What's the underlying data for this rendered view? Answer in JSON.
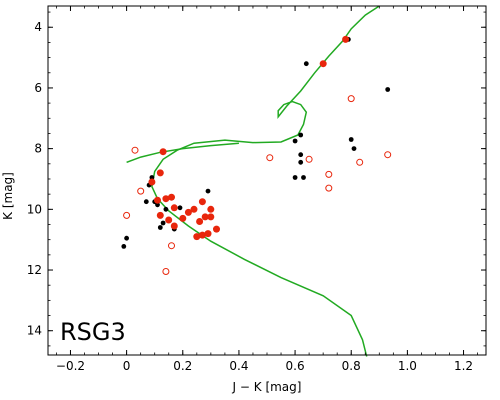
{
  "chart_data": {
    "type": "scatter",
    "xlabel": "J − K [mag]",
    "ylabel": "K [mag]",
    "annotation": "RSG3",
    "xlim": [
      -0.28,
      1.28
    ],
    "ylim": [
      14.8,
      3.3
    ],
    "y_inverted": true,
    "xticks": [
      -0.2,
      0.0,
      0.2,
      0.4,
      0.6,
      0.8,
      1.0,
      1.2
    ],
    "xtick_labels": [
      "−0.2",
      "0",
      "0.2",
      "0.4",
      "0.6",
      "0.8",
      "1.0",
      "1.2"
    ],
    "yticks": [
      4,
      6,
      8,
      10,
      12,
      14
    ],
    "ytick_labels": [
      "4",
      "6",
      "8",
      "10",
      "12",
      "14"
    ],
    "colors": {
      "black": "#000000",
      "red": "#e8260c",
      "green": "#22aa22"
    },
    "series": [
      {
        "style": "black-filled",
        "points": [
          [
            -0.01,
            11.22
          ],
          [
            0.0,
            10.95
          ],
          [
            0.07,
            9.75
          ],
          [
            0.08,
            9.2
          ],
          [
            0.09,
            8.95
          ],
          [
            0.1,
            9.75
          ],
          [
            0.11,
            9.85
          ],
          [
            0.12,
            10.6
          ],
          [
            0.13,
            10.45
          ],
          [
            0.14,
            10.0
          ],
          [
            0.17,
            10.65
          ],
          [
            0.19,
            9.95
          ],
          [
            0.29,
            9.4
          ],
          [
            0.64,
            5.2
          ],
          [
            0.79,
            4.4
          ],
          [
            0.93,
            6.05
          ],
          [
            0.6,
            7.75
          ],
          [
            0.62,
            7.55
          ],
          [
            0.62,
            8.2
          ],
          [
            0.62,
            8.45
          ],
          [
            0.6,
            8.95
          ],
          [
            0.63,
            8.95
          ],
          [
            0.8,
            7.7
          ],
          [
            0.81,
            8.0
          ]
        ]
      },
      {
        "style": "red-filled",
        "points": [
          [
            0.13,
            8.1
          ],
          [
            0.12,
            8.8
          ],
          [
            0.09,
            9.1
          ],
          [
            0.11,
            9.7
          ],
          [
            0.14,
            9.65
          ],
          [
            0.16,
            9.6
          ],
          [
            0.17,
            9.95
          ],
          [
            0.12,
            10.2
          ],
          [
            0.15,
            10.35
          ],
          [
            0.17,
            10.55
          ],
          [
            0.2,
            10.3
          ],
          [
            0.22,
            10.1
          ],
          [
            0.24,
            10.0
          ],
          [
            0.26,
            10.4
          ],
          [
            0.27,
            9.75
          ],
          [
            0.28,
            10.25
          ],
          [
            0.3,
            10.0
          ],
          [
            0.3,
            10.25
          ],
          [
            0.32,
            10.65
          ],
          [
            0.29,
            10.8
          ],
          [
            0.27,
            10.85
          ],
          [
            0.25,
            10.9
          ],
          [
            0.7,
            5.2
          ],
          [
            0.78,
            4.4
          ]
        ]
      },
      {
        "style": "red-open",
        "points": [
          [
            0.03,
            8.05
          ],
          [
            0.05,
            9.4
          ],
          [
            0.0,
            10.2
          ],
          [
            0.14,
            12.05
          ],
          [
            0.16,
            11.2
          ],
          [
            0.51,
            8.3
          ],
          [
            0.65,
            8.35
          ],
          [
            0.72,
            8.85
          ],
          [
            0.72,
            9.3
          ],
          [
            0.8,
            6.35
          ],
          [
            0.83,
            8.45
          ],
          [
            0.93,
            8.2
          ]
        ]
      },
      {
        "style": "green-line",
        "points": [
          [
            0.855,
            14.85
          ],
          [
            0.84,
            14.3
          ],
          [
            0.8,
            13.5
          ],
          [
            0.7,
            12.85
          ],
          [
            0.55,
            12.25
          ],
          [
            0.42,
            11.65
          ],
          [
            0.3,
            11.05
          ],
          [
            0.22,
            10.55
          ],
          [
            0.15,
            10.05
          ],
          [
            0.11,
            9.65
          ],
          [
            0.09,
            9.25
          ],
          [
            0.1,
            8.75
          ],
          [
            0.13,
            8.35
          ],
          [
            0.18,
            8.05
          ],
          [
            0.24,
            7.82
          ],
          [
            0.35,
            7.72
          ],
          [
            0.45,
            7.8
          ],
          [
            0.55,
            7.78
          ],
          [
            0.61,
            7.55
          ],
          [
            0.63,
            7.2
          ],
          [
            0.64,
            6.8
          ],
          [
            0.62,
            6.55
          ],
          [
            0.59,
            6.45
          ],
          [
            0.56,
            6.55
          ],
          [
            0.54,
            6.75
          ],
          [
            0.54,
            6.95
          ],
          [
            0.57,
            6.6
          ],
          [
            0.62,
            6.1
          ],
          [
            0.67,
            5.5
          ],
          [
            0.72,
            4.95
          ],
          [
            0.77,
            4.45
          ],
          [
            0.8,
            4.05
          ],
          [
            0.85,
            3.6
          ],
          [
            0.9,
            3.3
          ]
        ]
      },
      {
        "style": "green-line",
        "points": [
          [
            0.0,
            8.45
          ],
          [
            0.05,
            8.28
          ],
          [
            0.12,
            8.12
          ],
          [
            0.2,
            8.0
          ],
          [
            0.3,
            7.9
          ],
          [
            0.4,
            7.82
          ]
        ]
      }
    ]
  }
}
